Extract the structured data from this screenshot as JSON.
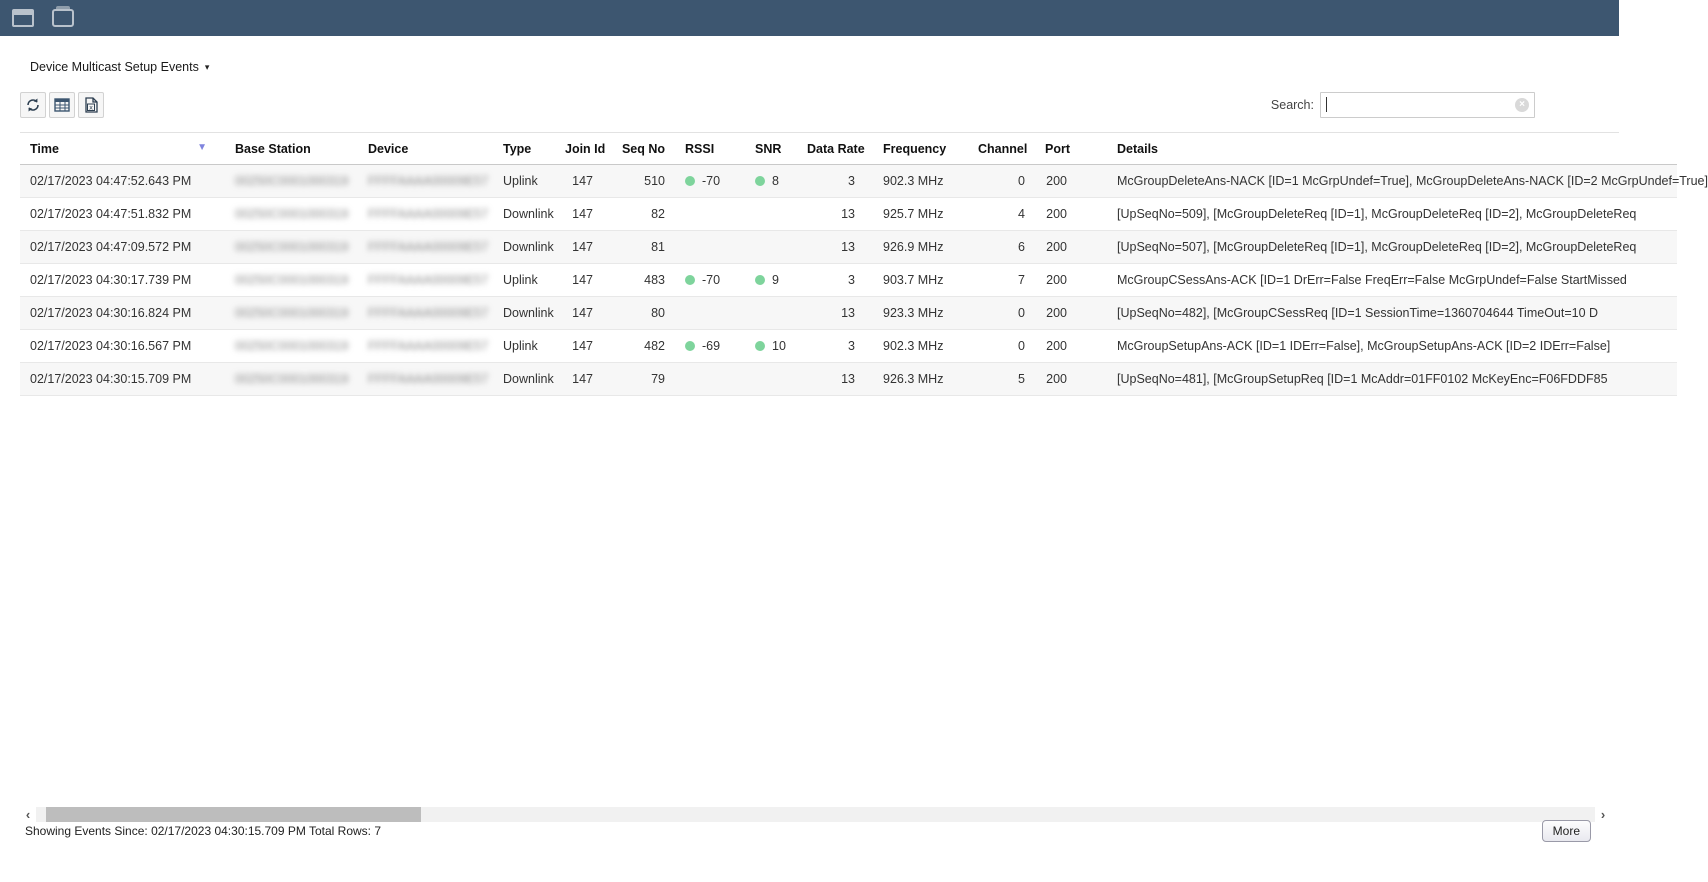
{
  "topbar": {
    "icons": [
      {
        "name": "window-titlebar-icon"
      },
      {
        "name": "window-tab-icon"
      }
    ]
  },
  "header": {
    "title": "Device Multicast Setup Events",
    "caret": "▾"
  },
  "toolbar": {
    "buttons": [
      {
        "name": "refresh"
      },
      {
        "name": "table-view"
      },
      {
        "name": "export-excel"
      }
    ]
  },
  "search": {
    "label": "Search:",
    "value": "",
    "clear_icon": "×"
  },
  "table": {
    "columns": [
      {
        "key": "time",
        "label": "Time",
        "align": "left",
        "sorted": "desc",
        "cls": "col-time"
      },
      {
        "key": "base_station",
        "label": "Base Station",
        "align": "left",
        "redacted": true,
        "cls": "col-bs"
      },
      {
        "key": "device",
        "label": "Device",
        "align": "left",
        "redacted": true,
        "cls": "col-dev"
      },
      {
        "key": "type",
        "label": "Type",
        "align": "left",
        "cls": "col-type"
      },
      {
        "key": "join_id",
        "label": "Join Id",
        "align": "right",
        "cls": "col-join"
      },
      {
        "key": "seq_no",
        "label": "Seq No",
        "align": "right",
        "cls": "col-seq"
      },
      {
        "key": "rssi",
        "label": "RSSI",
        "align": "left",
        "dot": true,
        "cls": "col-rssi"
      },
      {
        "key": "snr",
        "label": "SNR",
        "align": "left",
        "dot": true,
        "cls": "col-snr"
      },
      {
        "key": "data_rate",
        "label": "Data Rate",
        "align": "right",
        "cls": "col-dr"
      },
      {
        "key": "frequency",
        "label": "Frequency",
        "align": "left",
        "cls": "col-freq",
        "pad": "pad-freq"
      },
      {
        "key": "channel",
        "label": "Channel",
        "align": "right",
        "cls": "col-chan"
      },
      {
        "key": "port",
        "label": "Port",
        "align": "right",
        "cls": "col-port"
      },
      {
        "key": "details",
        "label": "Details",
        "align": "left",
        "cls": "col-det",
        "pad": "pad-det"
      }
    ],
    "rows": [
      {
        "time": "02/17/2023 04:47:52.643 PM",
        "base_station": "00250C0001000319",
        "device": "FFFFAAAA00009E57",
        "type": "Uplink",
        "join_id": "147",
        "seq_no": "510",
        "rssi": "-70",
        "snr": "8",
        "data_rate": "3",
        "frequency": "902.3 MHz",
        "channel": "0",
        "port": "200",
        "details": "McGroupDeleteAns-NACK [ID=1 McGrpUndef=True], McGroupDeleteAns-NACK [ID=2 McGrpUndef=True]"
      },
      {
        "time": "02/17/2023 04:47:51.832 PM",
        "base_station": "00250C0001000319",
        "device": "FFFFAAAA00009E57",
        "type": "Downlink",
        "join_id": "147",
        "seq_no": "82",
        "rssi": "",
        "snr": "",
        "data_rate": "13",
        "frequency": "925.7 MHz",
        "channel": "4",
        "port": "200",
        "details": "[UpSeqNo=509], [McGroupDeleteReq [ID=1], McGroupDeleteReq [ID=2], McGroupDeleteReq"
      },
      {
        "time": "02/17/2023 04:47:09.572 PM",
        "base_station": "00250C0001000319",
        "device": "FFFFAAAA00009E57",
        "type": "Downlink",
        "join_id": "147",
        "seq_no": "81",
        "rssi": "",
        "snr": "",
        "data_rate": "13",
        "frequency": "926.9 MHz",
        "channel": "6",
        "port": "200",
        "details": "[UpSeqNo=507], [McGroupDeleteReq [ID=1], McGroupDeleteReq [ID=2], McGroupDeleteReq"
      },
      {
        "time": "02/17/2023 04:30:17.739 PM",
        "base_station": "00250C0001000319",
        "device": "FFFFAAAA00009E57",
        "type": "Uplink",
        "join_id": "147",
        "seq_no": "483",
        "rssi": "-70",
        "snr": "9",
        "data_rate": "3",
        "frequency": "903.7 MHz",
        "channel": "7",
        "port": "200",
        "details": "McGroupCSessAns-ACK [ID=1 DrErr=False FreqErr=False McGrpUndef=False StartMissed"
      },
      {
        "time": "02/17/2023 04:30:16.824 PM",
        "base_station": "00250C0001000319",
        "device": "FFFFAAAA00009E57",
        "type": "Downlink",
        "join_id": "147",
        "seq_no": "80",
        "rssi": "",
        "snr": "",
        "data_rate": "13",
        "frequency": "923.3 MHz",
        "channel": "0",
        "port": "200",
        "details": "[UpSeqNo=482], [McGroupCSessReq [ID=1 SessionTime=1360704644 TimeOut=10 D"
      },
      {
        "time": "02/17/2023 04:30:16.567 PM",
        "base_station": "00250C0001000319",
        "device": "FFFFAAAA00009E57",
        "type": "Uplink",
        "join_id": "147",
        "seq_no": "482",
        "rssi": "-69",
        "snr": "10",
        "data_rate": "3",
        "frequency": "902.3 MHz",
        "channel": "0",
        "port": "200",
        "details": "McGroupSetupAns-ACK [ID=1 IDErr=False], McGroupSetupAns-ACK [ID=2 IDErr=False]"
      },
      {
        "time": "02/17/2023 04:30:15.709 PM",
        "base_station": "00250C0001000319",
        "device": "FFFFAAAA00009E57",
        "type": "Downlink",
        "join_id": "147",
        "seq_no": "79",
        "rssi": "",
        "snr": "",
        "data_rate": "13",
        "frequency": "926.3 MHz",
        "channel": "5",
        "port": "200",
        "details": "[UpSeqNo=481], [McGroupSetupReq [ID=1 McAddr=01FF0102 McKeyEnc=F06FDDF85"
      }
    ]
  },
  "scrollbar": {
    "left_arrow": "‹",
    "right_arrow": "›"
  },
  "footer": {
    "status": "Showing Events Since: 02/17/2023 04:30:15.709 PM Total Rows: 7",
    "more_label": "More"
  },
  "colors": {
    "topbar": "#3d5670",
    "green_dot": "#7ed49c",
    "sort_arrow": "#7f84de"
  }
}
